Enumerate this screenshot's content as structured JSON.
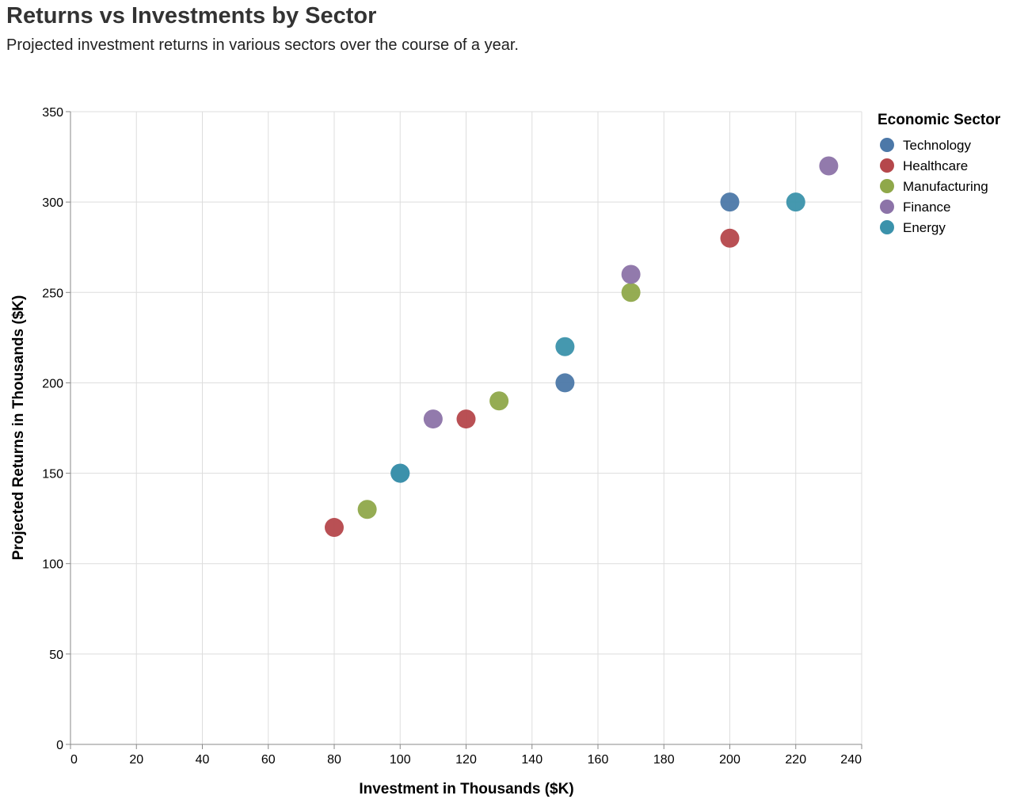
{
  "chart_data": {
    "type": "scatter",
    "title": "Returns vs Investments by Sector",
    "subtitle": "Projected investment returns in various sectors over the course of a year.",
    "xlabel": "Investment in Thousands ($K)",
    "ylabel": "Projected Returns in Thousands ($K)",
    "xlim": [
      0,
      240
    ],
    "ylim": [
      0,
      350
    ],
    "x_ticks": [
      0,
      20,
      40,
      60,
      80,
      100,
      120,
      140,
      160,
      180,
      200,
      220,
      240
    ],
    "y_ticks": [
      0,
      50,
      100,
      150,
      200,
      250,
      300,
      350
    ],
    "grid": true,
    "legend": {
      "title": "Economic Sector",
      "position": "right"
    },
    "series": [
      {
        "name": "Technology",
        "color": "#4c78a8",
        "points": [
          {
            "x": 100,
            "y": 150
          },
          {
            "x": 150,
            "y": 200
          },
          {
            "x": 200,
            "y": 300
          }
        ]
      },
      {
        "name": "Healthcare",
        "color": "#b5474b",
        "points": [
          {
            "x": 80,
            "y": 120
          },
          {
            "x": 120,
            "y": 180
          },
          {
            "x": 200,
            "y": 280
          }
        ]
      },
      {
        "name": "Manufacturing",
        "color": "#8fa84a",
        "points": [
          {
            "x": 90,
            "y": 130
          },
          {
            "x": 130,
            "y": 190
          },
          {
            "x": 170,
            "y": 250
          }
        ]
      },
      {
        "name": "Finance",
        "color": "#8c73a8",
        "points": [
          {
            "x": 110,
            "y": 180
          },
          {
            "x": 170,
            "y": 260
          },
          {
            "x": 230,
            "y": 320
          }
        ]
      },
      {
        "name": "Energy",
        "color": "#3b92ab",
        "points": [
          {
            "x": 100,
            "y": 150
          },
          {
            "x": 150,
            "y": 220
          },
          {
            "x": 220,
            "y": 300
          }
        ]
      }
    ]
  }
}
